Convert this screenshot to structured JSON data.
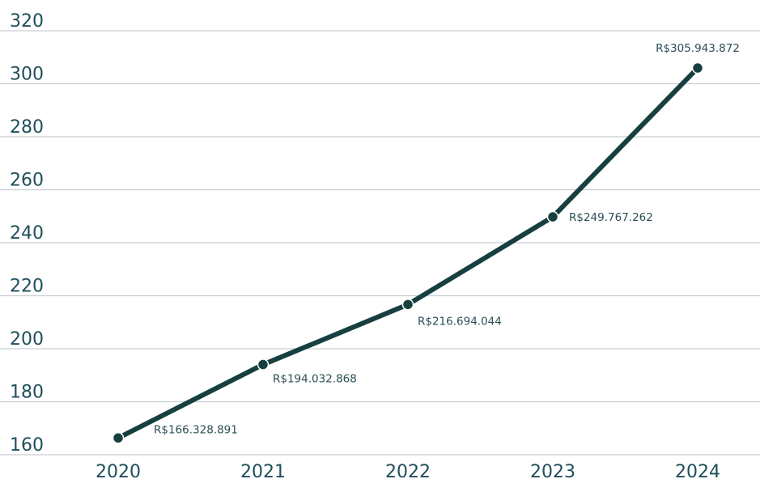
{
  "chart_data": {
    "type": "line",
    "categories": [
      "2020",
      "2021",
      "2022",
      "2023",
      "2024"
    ],
    "series": [
      {
        "values": [
          166.328891,
          194.032868,
          216.694044,
          249.767262,
          305.943872
        ],
        "data_labels": [
          "R$166.328.891",
          "R$194.032.868",
          "R$216.694.044",
          "R$249.767.262",
          "R$305.943.872"
        ]
      }
    ],
    "yticks": [
      "160",
      "180",
      "200",
      "220",
      "240",
      "260",
      "280",
      "300",
      "320"
    ],
    "ylim": [
      160,
      320
    ],
    "grid": true,
    "colors": {
      "line": "#173f40",
      "grid": "#c9ced3",
      "text": "#1f4f5a"
    }
  }
}
